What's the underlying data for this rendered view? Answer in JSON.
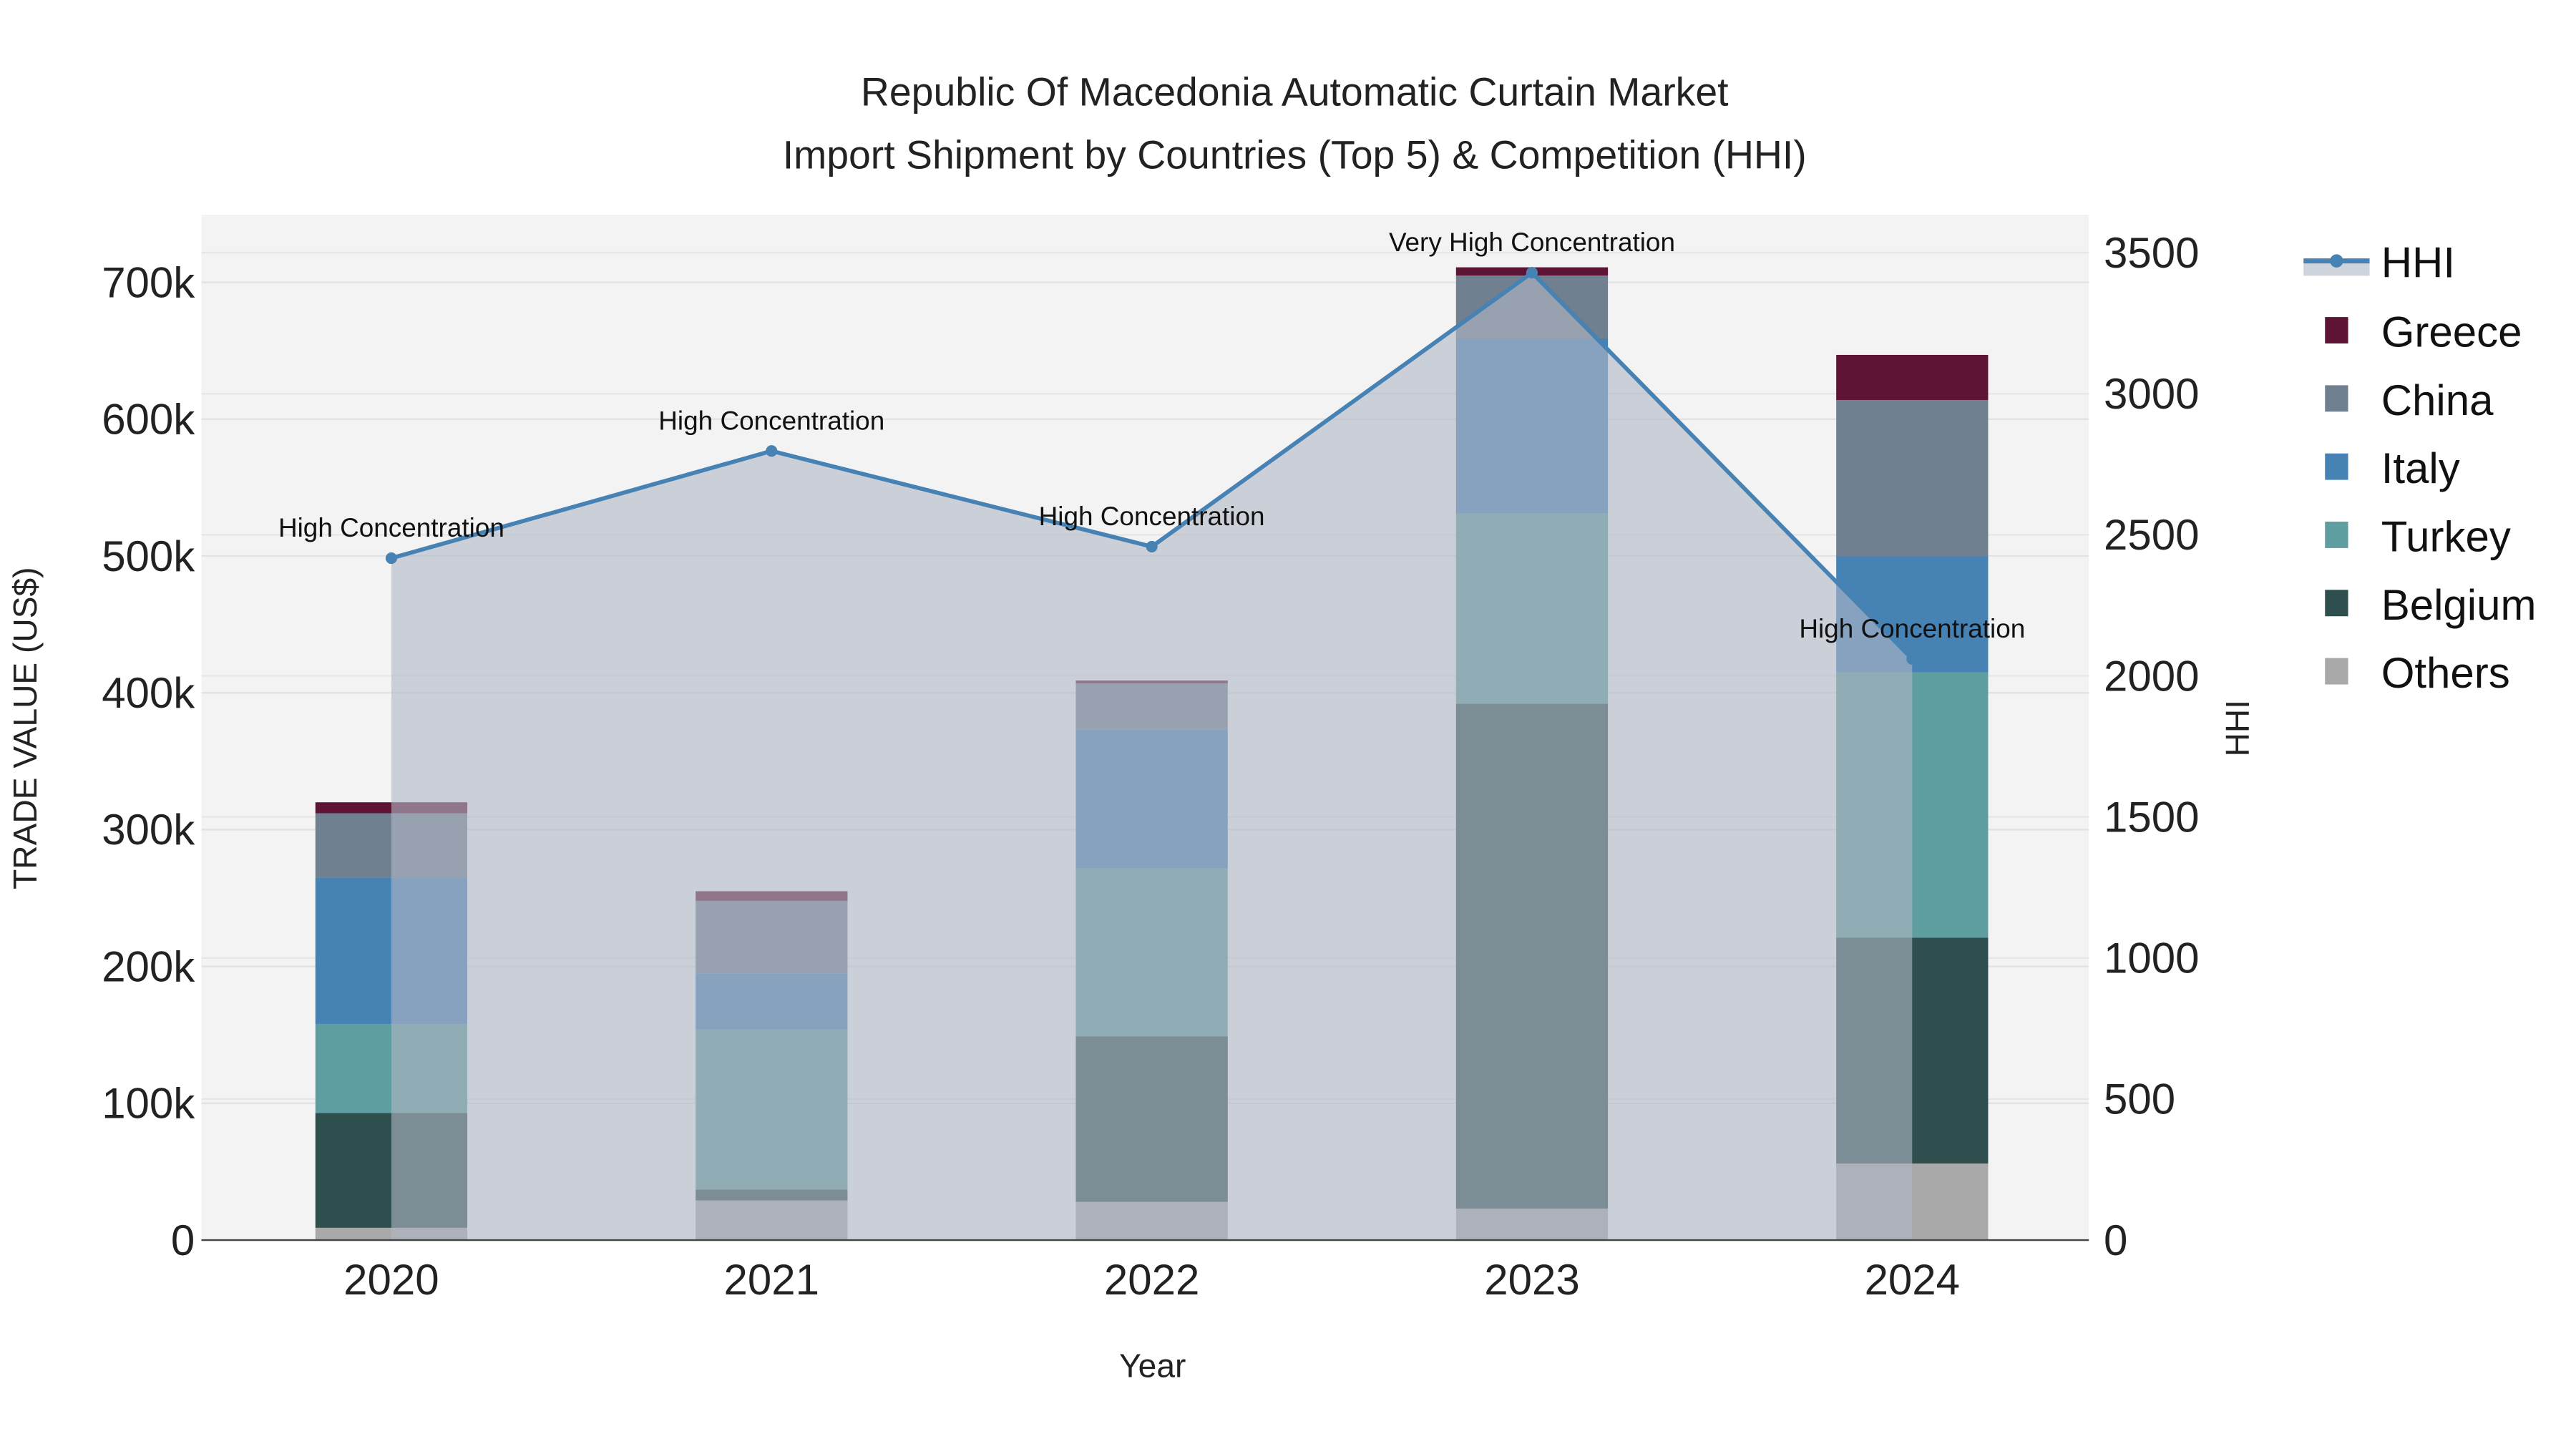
{
  "chart_data": {
    "type": "bar",
    "stacked": true,
    "title_line1": "Republic Of Macedonia Automatic Curtain Market",
    "title_line2": "Import Shipment by Countries (Top 5) & Competition (HHI)",
    "xlabel": "Year",
    "ylabel": "TRADE VALUE (US$)",
    "y2label": "HHI",
    "categories": [
      "2020",
      "2021",
      "2022",
      "2023",
      "2024"
    ],
    "ylim": [
      0,
      750000
    ],
    "y2lim": [
      0,
      3620
    ],
    "yticks": [
      0,
      100000,
      200000,
      300000,
      400000,
      500000,
      600000,
      700000
    ],
    "ytick_labels": [
      "0",
      "100k",
      "200k",
      "300k",
      "400k",
      "500k",
      "600k",
      "700k"
    ],
    "y2ticks": [
      0,
      500,
      1000,
      1500,
      2000,
      2500,
      3000,
      3500
    ],
    "y2tick_labels": [
      "0",
      "500",
      "1000",
      "1500",
      "2000",
      "2500",
      "3000",
      "3500"
    ],
    "grid": true,
    "legend_position": "right",
    "series": [
      {
        "name": "Others",
        "color": "#a9a9a9",
        "values": [
          9000,
          29000,
          28000,
          23000,
          56000
        ]
      },
      {
        "name": "Belgium",
        "color": "#2f4f4f",
        "values": [
          84000,
          8000,
          121000,
          369000,
          165000
        ]
      },
      {
        "name": "Turkey",
        "color": "#5f9ea0",
        "values": [
          65000,
          117000,
          123000,
          139000,
          194000
        ]
      },
      {
        "name": "Italy",
        "color": "#4682b4",
        "values": [
          107000,
          41000,
          101000,
          128000,
          85000
        ]
      },
      {
        "name": "China",
        "color": "#708090",
        "values": [
          47000,
          53000,
          34000,
          46000,
          114000
        ]
      },
      {
        "name": "Greece",
        "color": "#5e1434",
        "values": [
          8000,
          7000,
          2000,
          6000,
          33000
        ]
      }
    ],
    "hhi": {
      "name": "HHI",
      "color": "#4682b4",
      "values": [
        2417,
        2797,
        2458,
        3429,
        2060
      ],
      "annotations": [
        "High Concentration",
        "High Concentration",
        "High Concentration",
        "Very High Concentration",
        "High Concentration"
      ]
    },
    "legend_order": [
      "HHI",
      "Greece",
      "China",
      "Italy",
      "Turkey",
      "Belgium",
      "Others"
    ]
  }
}
